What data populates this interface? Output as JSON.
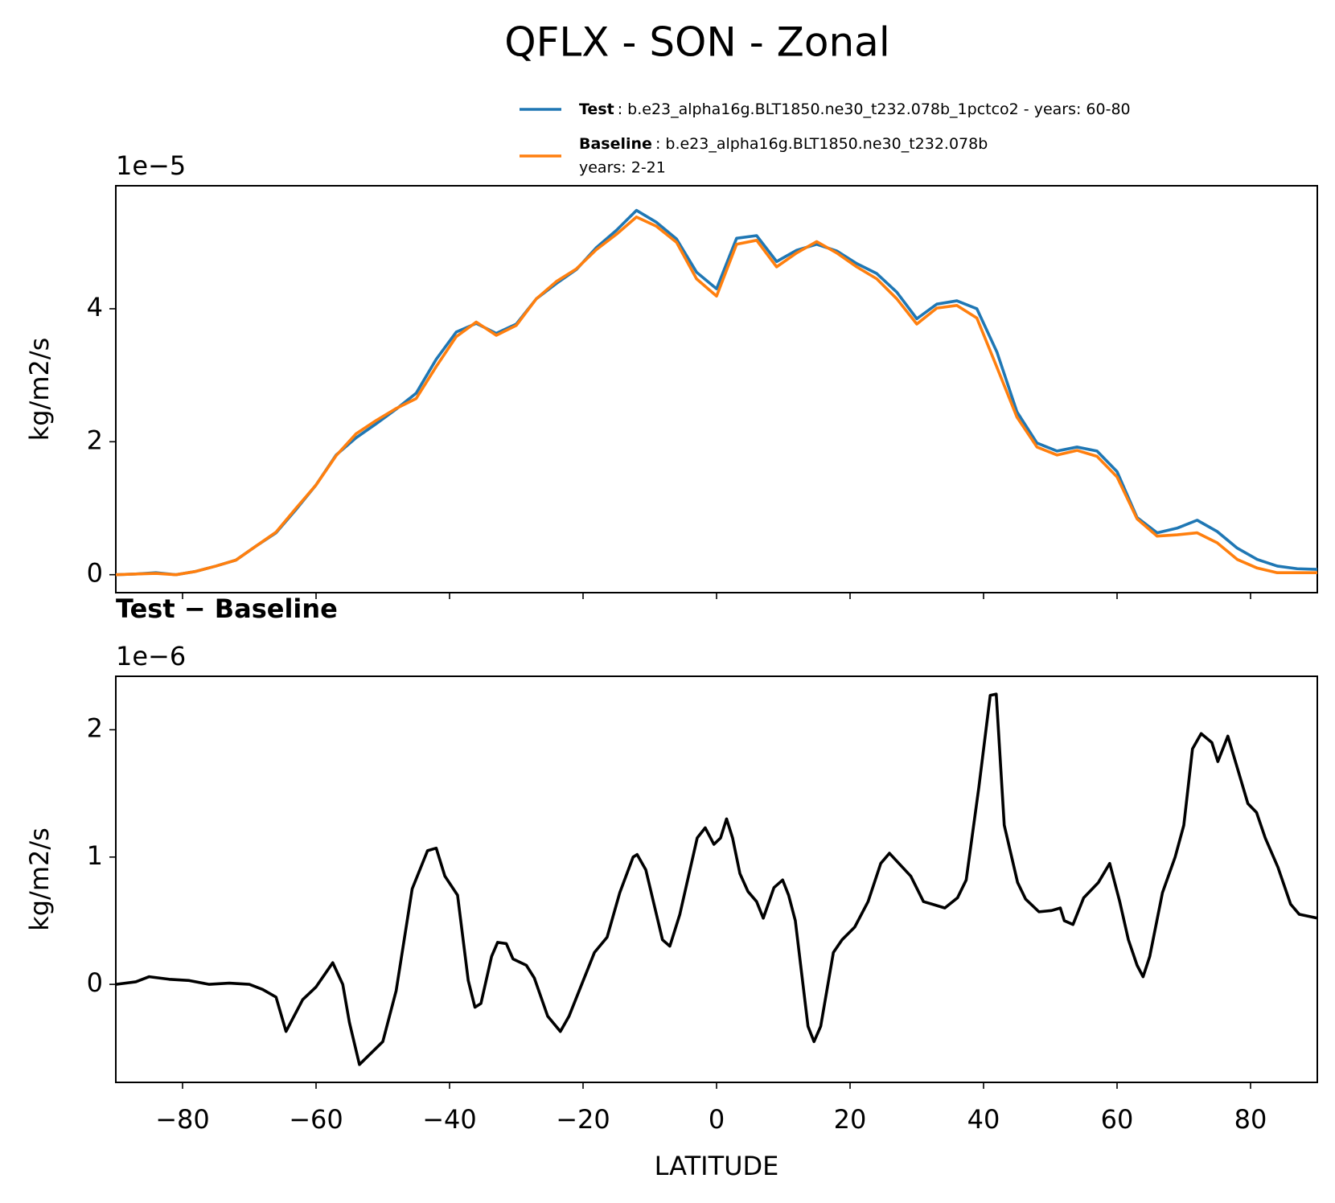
{
  "title": "QFLX - SON - Zonal",
  "chart_data": [
    {
      "type": "line",
      "ylabel": "kg/m2/s",
      "offset_label": "1e−5",
      "x": [
        -90,
        -87,
        -84,
        -81,
        -78,
        -75,
        -72,
        -69,
        -66,
        -63,
        -60,
        -57,
        -54,
        -51,
        -48,
        -45,
        -42,
        -39,
        -36,
        -33,
        -30,
        -27,
        -24,
        -21,
        -18,
        -15,
        -12,
        -9,
        -6,
        -3,
        0,
        3,
        6,
        9,
        12,
        15,
        18,
        21,
        24,
        27,
        30,
        33,
        36,
        39,
        42,
        45,
        48,
        51,
        54,
        57,
        60,
        63,
        66,
        69,
        72,
        75,
        78,
        81,
        84,
        87,
        90
      ],
      "series": [
        {
          "name": "Test",
          "detail": [
            ": b.e23_alpha16g.BLT1850.ne30_t232.078b_1pctco2 - years: 60-80"
          ],
          "color": "#1f77b4",
          "values": [
            0.0,
            0.01,
            0.03,
            0.0,
            0.05,
            0.13,
            0.22,
            0.43,
            0.63,
            0.98,
            1.35,
            1.8,
            2.06,
            2.27,
            2.49,
            2.73,
            3.24,
            3.65,
            3.78,
            3.63,
            3.77,
            4.15,
            4.38,
            4.59,
            4.92,
            5.18,
            5.48,
            5.3,
            5.05,
            4.55,
            4.3,
            5.06,
            5.1,
            4.71,
            4.88,
            4.97,
            4.87,
            4.68,
            4.53,
            4.25,
            3.85,
            4.07,
            4.12,
            4.0,
            3.35,
            2.45,
            1.98,
            1.86,
            1.92,
            1.86,
            1.55,
            0.86,
            0.63,
            0.7,
            0.82,
            0.65,
            0.4,
            0.23,
            0.13,
            0.09,
            0.08
          ]
        },
        {
          "name": "Baseline",
          "detail": [
            ": b.e23_alpha16g.BLT1850.ne30_t232.078b",
            "years: 2-21"
          ],
          "color": "#ff7f0e",
          "values": [
            0.0,
            0.01,
            0.02,
            0.0,
            0.05,
            0.13,
            0.22,
            0.43,
            0.64,
            1.0,
            1.35,
            1.79,
            2.12,
            2.32,
            2.5,
            2.65,
            3.13,
            3.58,
            3.8,
            3.6,
            3.75,
            4.15,
            4.41,
            4.6,
            4.89,
            5.12,
            5.38,
            5.24,
            5.0,
            4.45,
            4.19,
            4.97,
            5.03,
            4.63,
            4.84,
            5.01,
            4.84,
            4.63,
            4.45,
            4.15,
            3.77,
            4.01,
            4.05,
            3.86,
            3.12,
            2.37,
            1.92,
            1.8,
            1.87,
            1.78,
            1.47,
            0.84,
            0.58,
            0.6,
            0.63,
            0.48,
            0.23,
            0.1,
            0.03,
            0.03,
            0.03
          ]
        }
      ],
      "xlim": [
        -90,
        90
      ],
      "xticks": [
        {
          "value": -80,
          "label": "−80"
        },
        {
          "value": -60,
          "label": "−60"
        },
        {
          "value": -40,
          "label": "−40"
        },
        {
          "value": -20,
          "label": "−20"
        },
        0,
        20,
        40,
        60,
        80
      ],
      "show_xtick_labels": false,
      "ylim": [
        -0.27,
        5.85
      ],
      "yticks": [
        0,
        2,
        4
      ],
      "legend": "above-right"
    },
    {
      "type": "line",
      "title": "Test − Baseline",
      "ylabel": "kg/m2/s",
      "xlabel": "LATITUDE",
      "offset_label": "1e−6",
      "color": "#000000",
      "x": [
        -90,
        -87,
        -85,
        -82,
        -79,
        -76,
        -73,
        -70,
        -68,
        -66,
        -64.5,
        -62,
        -60,
        -57.5,
        -56,
        -55,
        -53.5,
        -50,
        -48,
        -45.6,
        -43.3,
        -42,
        -40.7,
        -38.8,
        -37.2,
        -36.2,
        -35.3,
        -33.7,
        -32.8,
        -31.5,
        -30.5,
        -28.5,
        -27.3,
        -25.3,
        -23.4,
        -22.1,
        -20.2,
        -18.3,
        -16.4,
        -14.5,
        -12.5,
        -11.9,
        -10.6,
        -8.1,
        -7,
        -5.5,
        -2.9,
        -1.7,
        -0.4,
        0.6,
        1.5,
        2.4,
        3.5,
        4.7,
        6,
        7,
        8.6,
        9.9,
        10.8,
        11.8,
        13.7,
        14.6,
        15.6,
        17.5,
        18.8,
        20.7,
        22.7,
        24.6,
        25.9,
        29.1,
        31,
        32.3,
        34.2,
        36.1,
        37.4,
        39.3,
        41,
        41.9,
        43.1,
        45.1,
        46.3,
        48.3,
        50.2,
        51.5,
        52.1,
        53.4,
        55,
        57.2,
        58.9,
        60.4,
        61.7,
        63,
        63.9,
        64.9,
        66.8,
        68.7,
        70,
        71.3,
        72.6,
        74.2,
        75.1,
        76.6,
        78.3,
        79.6,
        80.9,
        82.2,
        84.1,
        86,
        87.3,
        90
      ],
      "values": [
        0,
        0.02,
        0.06,
        0.04,
        0.03,
        0,
        0.01,
        0,
        -0.04,
        -0.1,
        -0.37,
        -0.12,
        -0.02,
        0.17,
        0,
        -0.3,
        -0.63,
        -0.45,
        -0.05,
        0.75,
        1.05,
        1.07,
        0.85,
        0.7,
        0.03,
        -0.18,
        -0.15,
        0.22,
        0.33,
        0.32,
        0.2,
        0.15,
        0.05,
        -0.25,
        -0.37,
        -0.25,
        0,
        0.25,
        0.37,
        0.72,
        1,
        1.02,
        0.9,
        0.35,
        0.3,
        0.55,
        1.15,
        1.23,
        1.1,
        1.15,
        1.3,
        1.15,
        0.87,
        0.73,
        0.65,
        0.52,
        0.76,
        0.82,
        0.7,
        0.5,
        -0.33,
        -0.45,
        -0.33,
        0.25,
        0.35,
        0.45,
        0.65,
        0.95,
        1.03,
        0.85,
        0.65,
        0.63,
        0.6,
        0.68,
        0.82,
        1.55,
        2.27,
        2.28,
        1.25,
        0.8,
        0.67,
        0.57,
        0.58,
        0.6,
        0.5,
        0.47,
        0.68,
        0.8,
        0.95,
        0.65,
        0.35,
        0.15,
        0.06,
        0.22,
        0.72,
        1.0,
        1.25,
        1.85,
        1.97,
        1.9,
        1.75,
        1.95,
        1.65,
        1.42,
        1.35,
        1.15,
        0.92,
        0.63,
        0.55,
        0.52
      ],
      "xlim": [
        -90,
        90
      ],
      "xticks": [
        {
          "value": -80,
          "label": "−80"
        },
        {
          "value": -60,
          "label": "−60"
        },
        {
          "value": -40,
          "label": "−40"
        },
        {
          "value": -20,
          "label": "−20"
        },
        0,
        20,
        40,
        60,
        80
      ],
      "show_xtick_labels": true,
      "ylim": [
        -0.77,
        2.42
      ],
      "yticks": [
        0,
        1,
        2
      ]
    }
  ]
}
